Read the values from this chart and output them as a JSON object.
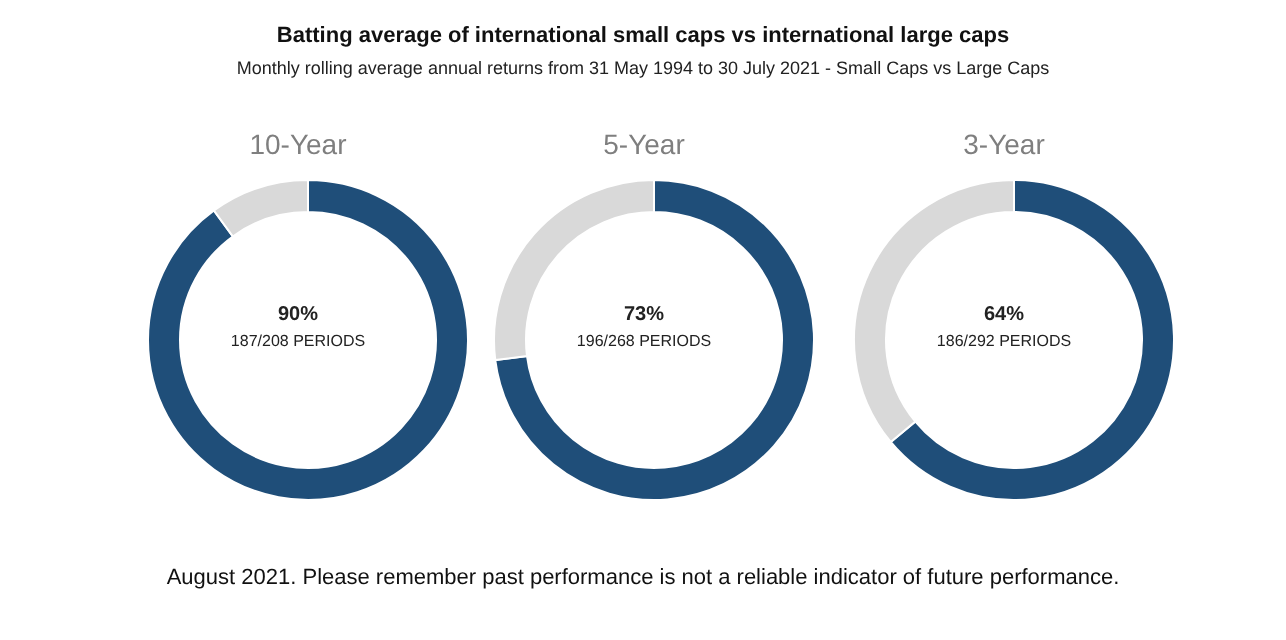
{
  "chart_data": [
    {
      "type": "other",
      "title": "Batting average of international small caps vs international large caps",
      "subtitle": "Monthly rolling average annual returns from 31 May 1994 to 30 July 2021 - Small Caps vs Large Caps",
      "annotations": [
        "August 2021. Please remember past performance is not a reliable indicator of future performance."
      ]
    },
    {
      "type": "donut",
      "title": "10-Year",
      "categories": [
        null,
        null
      ],
      "values": [
        90,
        10
      ],
      "colors": [
        "#1f4e79",
        "#d9d9d9"
      ],
      "annotations": [
        "90%",
        "187/208 PERIODS"
      ]
    },
    {
      "type": "donut",
      "title": "5-Year",
      "categories": [
        null,
        null
      ],
      "values": [
        73,
        27
      ],
      "colors": [
        "#1f4e79",
        "#d9d9d9"
      ],
      "annotations": [
        "73%",
        "196/268 PERIODS"
      ]
    },
    {
      "type": "donut",
      "title": "3-Year",
      "categories": [
        null,
        null
      ],
      "values": [
        64,
        36
      ],
      "colors": [
        "#1f4e79",
        "#d9d9d9"
      ],
      "annotations": [
        "64%",
        "186/292 PERIODS"
      ]
    }
  ]
}
